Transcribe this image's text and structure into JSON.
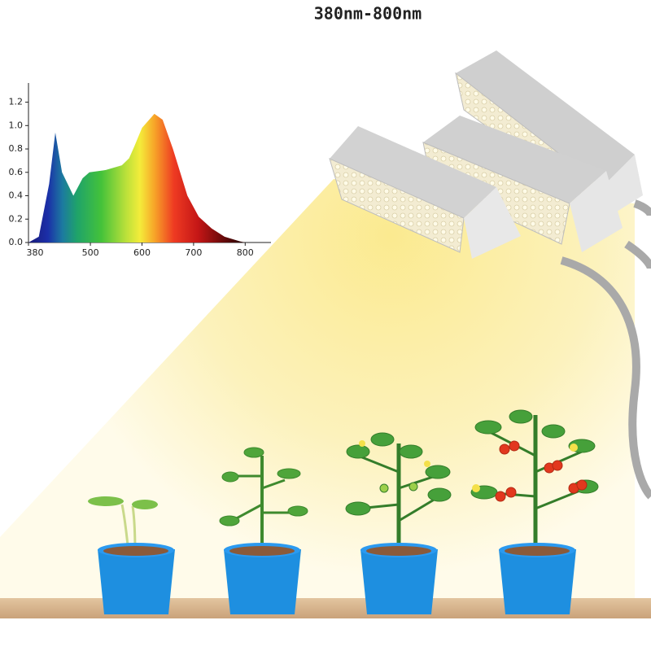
{
  "chart_data": {
    "type": "area",
    "title": "380nm-800nm",
    "x": [
      380,
      400,
      420,
      432,
      445,
      467,
      485,
      498,
      530,
      561,
      575,
      585,
      600,
      624,
      640,
      660,
      688,
      710,
      735,
      760,
      790,
      800
    ],
    "values": [
      0,
      0.05,
      0.5,
      0.94,
      0.6,
      0.4,
      0.55,
      0.6,
      0.62,
      0.66,
      0.72,
      0.82,
      0.98,
      1.1,
      1.05,
      0.8,
      0.4,
      0.22,
      0.12,
      0.05,
      0.01,
      0
    ],
    "xlim": [
      380,
      850
    ],
    "xticks": [
      380,
      500,
      600,
      700,
      800
    ],
    "ylim": [
      0,
      1.35
    ],
    "yticks": [
      {
        "value": 0,
        "label": "0.0"
      },
      0.2,
      0.4,
      0.6,
      0.8,
      {
        "value": 1,
        "label": "1.0"
      },
      1.2
    ],
    "grid": false
  }
}
